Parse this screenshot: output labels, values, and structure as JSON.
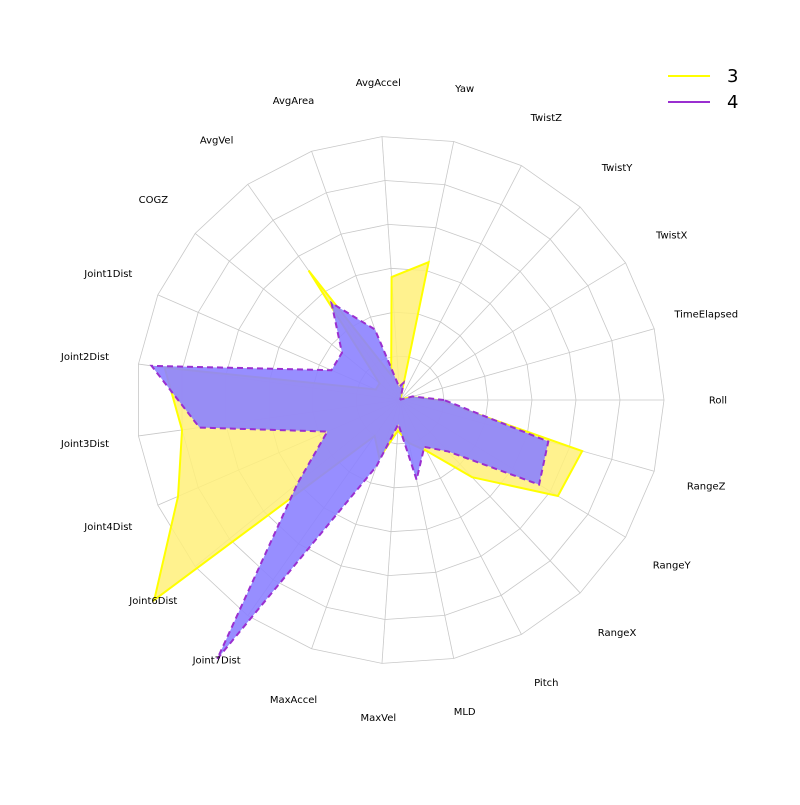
{
  "chart_data": {
    "type": "radar",
    "title": "",
    "legend_placement": "top-right",
    "grid": true,
    "rings": 6,
    "axes": [
      "Roll",
      "TimeElapsed",
      "TwistX",
      "TwistY",
      "TwistZ",
      "Yaw",
      "AvgAccel",
      "AvgArea",
      "AvgVel",
      "COGZ",
      "Joint1Dist",
      "Joint2Dist",
      "Joint3Dist",
      "Joint4Dist",
      "Joint6Dist",
      "Joint7Dist",
      "MaxAccel",
      "MaxVel",
      "MLD",
      "Pitch",
      "RangeX",
      "RangeY",
      "RangeZ"
    ],
    "series": [
      {
        "name": "3",
        "color": "#ffff00",
        "fill": "#fff07a",
        "fill_opacity": 0.85,
        "dashed": false,
        "values": [
          0.85,
          0.25,
          0.02,
          0.02,
          0.02,
          3.2,
          2.8,
          0.6,
          3.6,
          0.6,
          0.6,
          5.4,
          5.0,
          5.5,
          7.2,
          1.0,
          1.4,
          0.7,
          1.0,
          1.3,
          2.4,
          4.2,
          4.3
        ]
      },
      {
        "name": "4",
        "color": "#9a2fd0",
        "fill": "#8c82ff",
        "fill_opacity": 0.9,
        "dashed": true,
        "values": [
          1.0,
          0.3,
          0.02,
          0.02,
          0.02,
          0.4,
          0.3,
          1.7,
          2.7,
          1.7,
          1.7,
          5.7,
          4.6,
          1.8,
          3.0,
          7.2,
          1.6,
          0.55,
          1.85,
          1.2,
          1.6,
          3.7,
          3.5
        ]
      }
    ]
  }
}
